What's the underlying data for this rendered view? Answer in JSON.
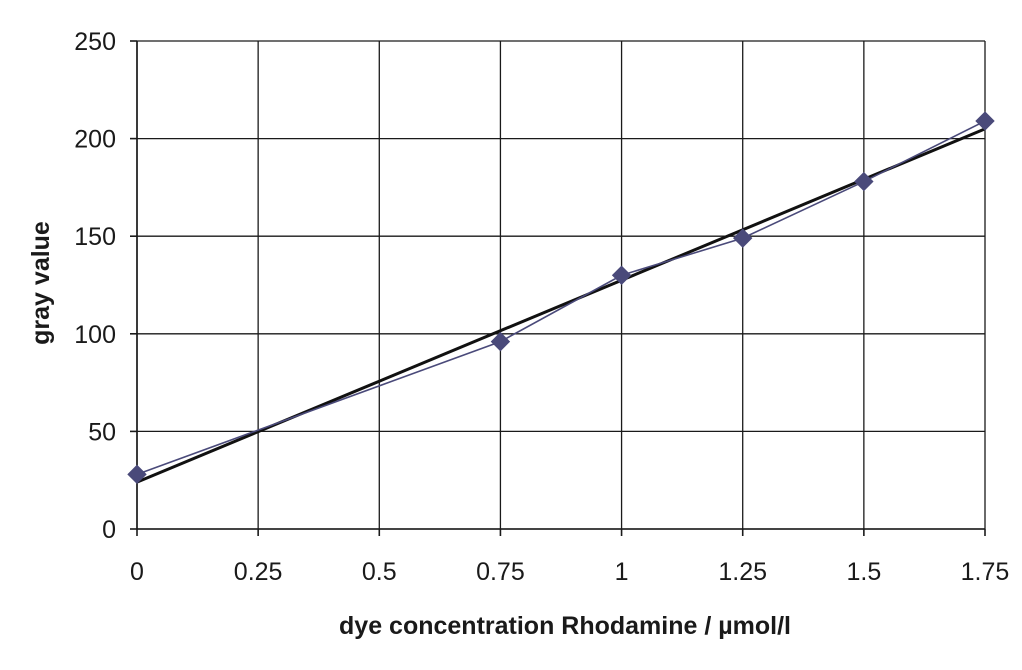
{
  "chart_data": {
    "type": "scatter",
    "title": "",
    "xlabel": "dye concentration Rhodamine / µmol/l",
    "ylabel": "gray value",
    "x_ticks": [
      "0",
      "0.25",
      "0.5",
      "0.75",
      "1",
      "1.25",
      "1.5",
      "1.75"
    ],
    "y_ticks": [
      "0",
      "50",
      "100",
      "150",
      "200",
      "250"
    ],
    "xlim": [
      0,
      1.75
    ],
    "ylim": [
      0,
      250
    ],
    "grid": true,
    "legend": "none",
    "series": [
      {
        "x": [
          0,
          0.75,
          1,
          1.25,
          1.5,
          1.75
        ],
        "y": [
          28,
          96,
          130,
          149,
          178,
          209
        ],
        "marker": "diamond",
        "connected": true,
        "color": "#4a4a7a"
      }
    ],
    "trendline": {
      "type": "linear",
      "x": [
        0,
        1.75
      ],
      "y": [
        24,
        205
      ],
      "color": "#111111"
    }
  }
}
